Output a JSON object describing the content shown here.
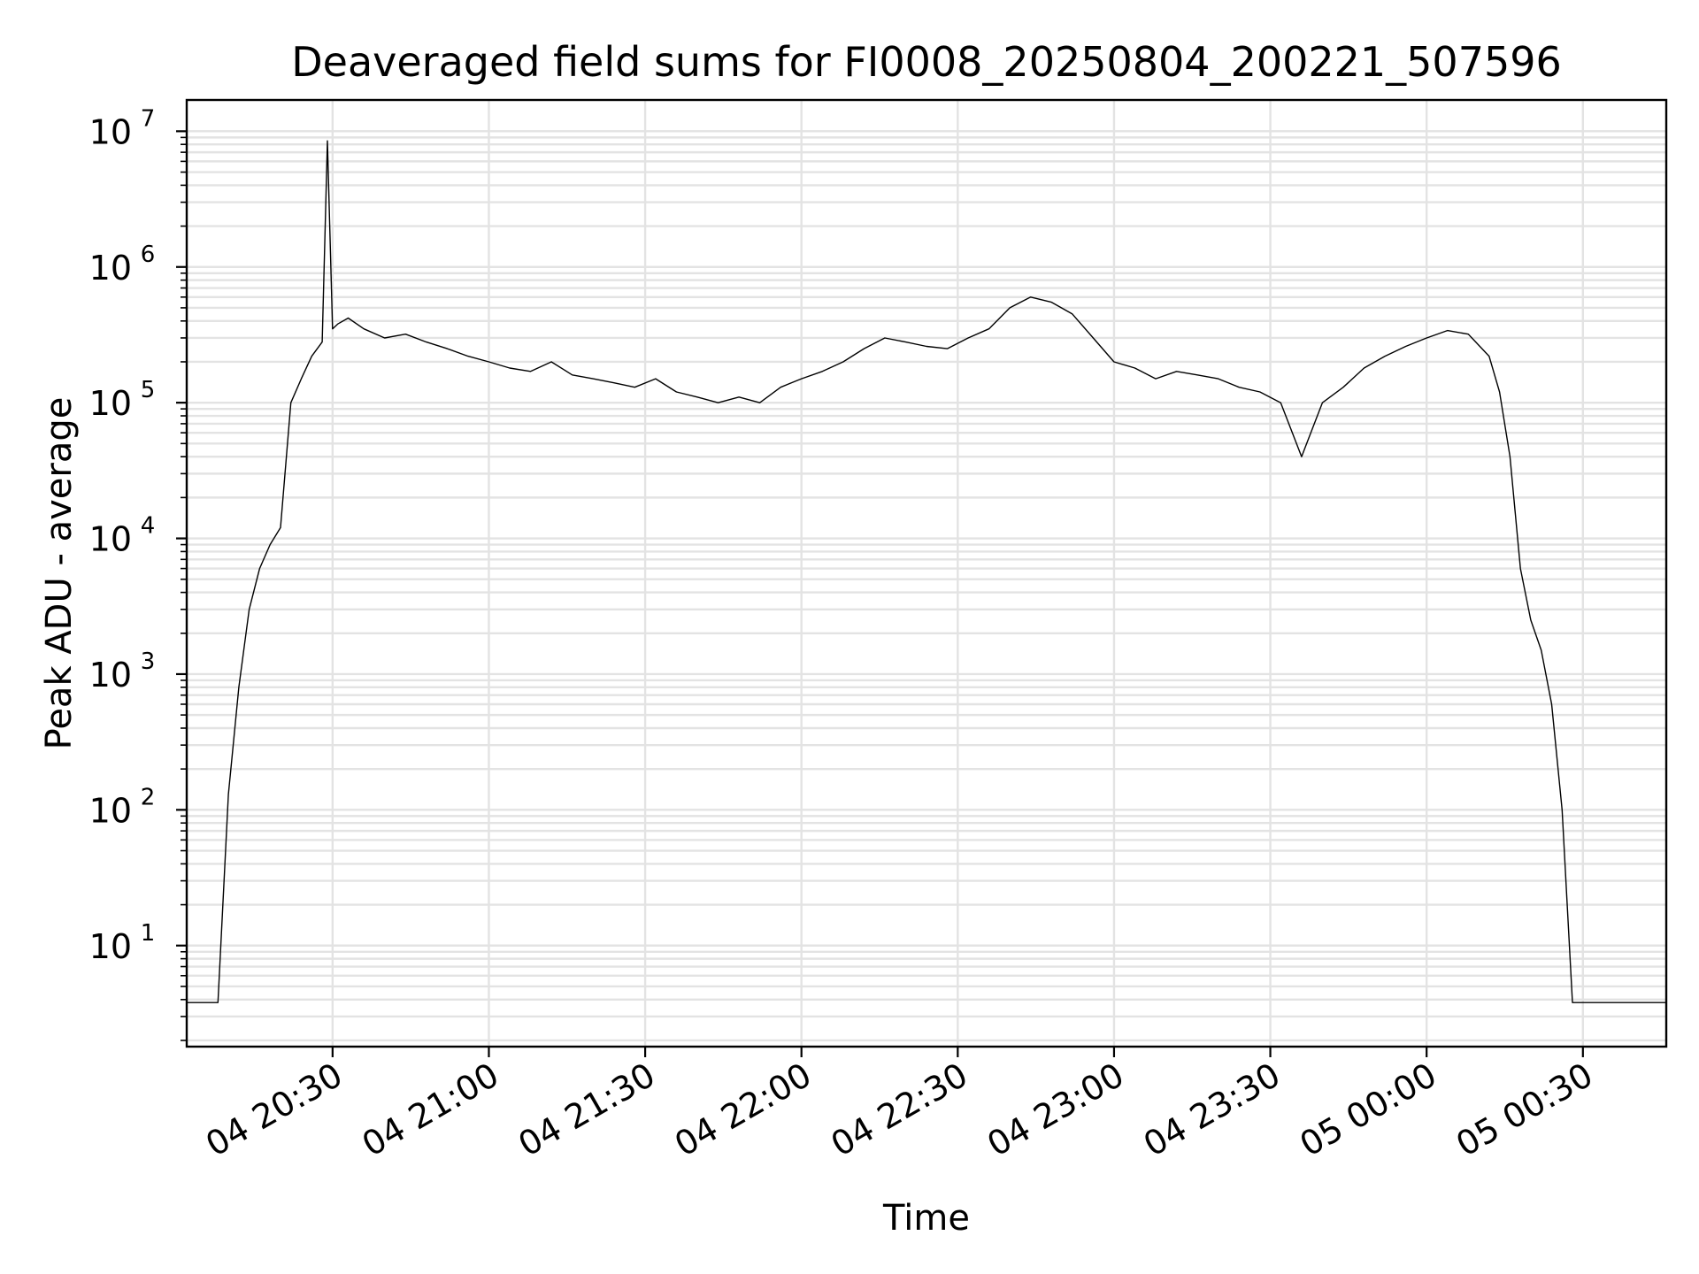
{
  "chart_data": {
    "type": "line",
    "title": "Deaveraged field sums for FI0008_20250804_200221_507596",
    "xlabel": "Time",
    "ylabel": "Peak ADU - average",
    "x_scale": "time",
    "y_scale": "log",
    "xlim": [
      "04 20:02",
      "05 00:46"
    ],
    "ylim": [
      1.8,
      17000000
    ],
    "x_ticks": [
      "04 20:30",
      "04 21:00",
      "04 21:30",
      "04 22:00",
      "04 22:30",
      "04 23:00",
      "04 23:30",
      "05 00:00",
      "05 00:30"
    ],
    "y_ticks": [
      {
        "base": "10",
        "exp": "1",
        "value": 10
      },
      {
        "base": "10",
        "exp": "2",
        "value": 100
      },
      {
        "base": "10",
        "exp": "3",
        "value": 1000
      },
      {
        "base": "10",
        "exp": "4",
        "value": 10000
      },
      {
        "base": "10",
        "exp": "5",
        "value": 100000
      },
      {
        "base": "10",
        "exp": "6",
        "value": 1000000
      },
      {
        "base": "10",
        "exp": "7",
        "value": 10000000
      }
    ],
    "grid": true,
    "grid_color": "#e3e3e3",
    "line_color": "#000000",
    "series": [
      {
        "x": [
          "04 20:02",
          "04 20:06",
          "04 20:08",
          "04 20:10",
          "04 20:12",
          "04 20:14",
          "04 20:16",
          "04 20:18",
          "04 20:20",
          "04 20:22",
          "04 20:24",
          "04 20:26",
          "04 20:28",
          "04 20:29",
          "04 20:30",
          "04 20:31",
          "04 20:33",
          "04 20:36",
          "04 20:40",
          "04 20:44",
          "04 20:48",
          "04 20:52",
          "04 20:56",
          "04 21:00",
          "04 21:04",
          "04 21:08",
          "04 21:12",
          "04 21:16",
          "04 21:20",
          "04 21:24",
          "04 21:28",
          "04 21:32",
          "04 21:36",
          "04 21:40",
          "04 21:44",
          "04 21:48",
          "04 21:52",
          "04 21:56",
          "04 22:00",
          "04 22:04",
          "04 22:08",
          "04 22:12",
          "04 22:16",
          "04 22:20",
          "04 22:24",
          "04 22:28",
          "04 22:32",
          "04 22:36",
          "04 22:40",
          "04 22:44",
          "04 22:48",
          "04 22:52",
          "04 22:56",
          "04 23:00",
          "04 23:04",
          "04 23:08",
          "04 23:12",
          "04 23:16",
          "04 23:20",
          "04 23:24",
          "04 23:28",
          "04 23:32",
          "04 23:36",
          "04 23:40",
          "04 23:44",
          "04 23:48",
          "04 23:52",
          "04 23:56",
          "05 00:00",
          "05 00:04",
          "05 00:08",
          "05 00:12",
          "05 00:14",
          "05 00:16",
          "05 00:18",
          "05 00:20",
          "05 00:22",
          "05 00:24",
          "05 00:26",
          "05 00:28",
          "05 00:30",
          "05 00:32",
          "05 00:33",
          "05 00:34",
          "05 00:38",
          "05 00:42",
          "05 00:46"
        ],
        "y": [
          3.8,
          3.8,
          3.8,
          130,
          800,
          3000,
          6000,
          9000,
          12000,
          100000,
          150000,
          220000,
          280000,
          8500000,
          350000,
          380000,
          420000,
          350000,
          300000,
          320000,
          280000,
          250000,
          220000,
          200000,
          180000,
          170000,
          200000,
          160000,
          150000,
          140000,
          130000,
          150000,
          120000,
          110000,
          100000,
          110000,
          100000,
          130000,
          150000,
          170000,
          200000,
          250000,
          300000,
          280000,
          260000,
          250000,
          300000,
          350000,
          500000,
          600000,
          550000,
          450000,
          300000,
          200000,
          180000,
          150000,
          170000,
          160000,
          150000,
          130000,
          120000,
          100000,
          40000,
          100000,
          130000,
          180000,
          220000,
          260000,
          300000,
          340000,
          320000,
          220000,
          120000,
          40000,
          6000,
          2500,
          1500,
          600,
          100,
          3.8,
          3.8,
          3.8,
          3.8,
          3.8,
          3.8,
          3.8,
          3.8
        ]
      }
    ]
  }
}
